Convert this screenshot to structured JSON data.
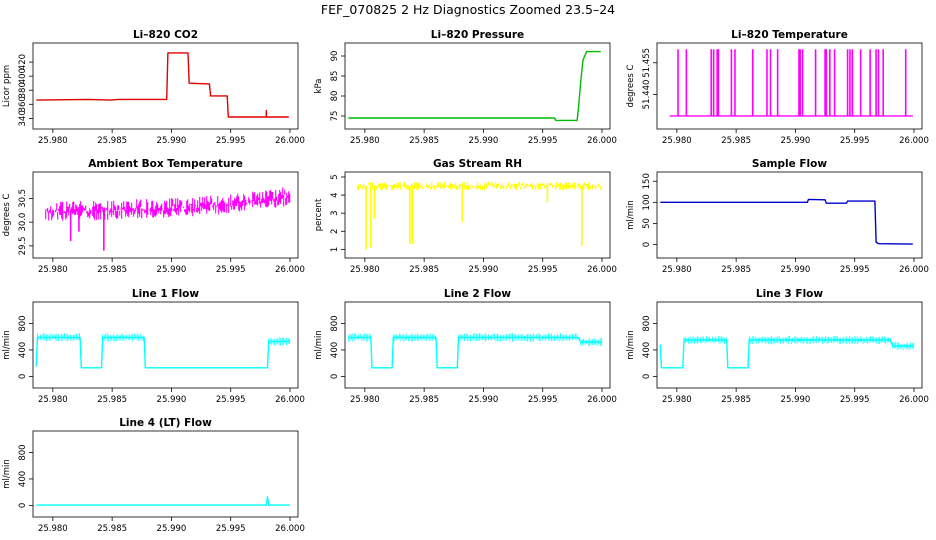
{
  "figure": {
    "title": "FEF_070825  2 Hz Diagnostics Zoomed 23.5–24"
  },
  "colors": {
    "red": "#e00000",
    "green": "#00bb00",
    "magenta": "#ff00ff",
    "yellow": "#ffff00",
    "blue": "#0000cc",
    "cyan": "#00ffff"
  },
  "chart_data": [
    {
      "type": "line",
      "title": "Li–820 CO2",
      "ylabel": "Licor ppm",
      "color": "#e00000",
      "xlim": [
        25.979,
        26.0
      ],
      "ylim": [
        332,
        440
      ],
      "xticks": [
        "25.980",
        "25.985",
        "25.990",
        "25.995",
        "26.000"
      ],
      "yticks": [
        "340",
        "360",
        "380",
        "400",
        "420"
      ],
      "series": [
        {
          "x": [
            25.9786,
            25.983,
            25.9849,
            25.9855,
            25.9896,
            25.9897,
            25.9914,
            25.9915,
            25.9932,
            25.9933,
            25.9947,
            25.9948,
            25.998,
            25.998,
            25.998,
            25.9981,
            25.9999
          ],
          "y": [
            366,
            367,
            366,
            367,
            367,
            433,
            433,
            390,
            389,
            372,
            372,
            342,
            342,
            351,
            343,
            342,
            342
          ]
        }
      ]
    },
    {
      "type": "line",
      "title": "Li–820 Pressure",
      "ylabel": "kPa",
      "color": "#00bb00",
      "xlim": [
        25.979,
        26.0
      ],
      "ylim": [
        73,
        92
      ],
      "xticks": [
        "25.980",
        "25.985",
        "25.990",
        "25.995",
        "26.000"
      ],
      "yticks": [
        "75",
        "80",
        "85",
        "90"
      ],
      "series": [
        {
          "x": [
            25.9786,
            25.996,
            25.9961,
            25.9979,
            25.998,
            25.9982,
            25.9984,
            25.9987,
            25.9999
          ],
          "y": [
            74.5,
            74.5,
            73.9,
            73.9,
            76.5,
            83.5,
            89,
            91.1,
            91.1
          ]
        }
      ]
    },
    {
      "type": "line",
      "title": "Li–820 Temperature",
      "ylabel": "degrees C",
      "color": "#ff00ff",
      "xlim": [
        25.979,
        26.0
      ],
      "ylim": [
        51.426,
        51.462
      ],
      "xticks": [
        "25.980",
        "25.985",
        "25.990",
        "25.995",
        "26.000"
      ],
      "yticks": [
        "51.440",
        "51.455"
      ],
      "baseline": 51.4298,
      "peak": 51.4614,
      "spikes": [
        25.9801,
        25.9808,
        25.9829,
        25.9831,
        25.9834,
        25.9835,
        25.9846,
        25.9849,
        25.9864,
        25.9876,
        25.9879,
        25.9885,
        25.9903,
        25.9904,
        25.9906,
        25.9917,
        25.9925,
        25.9926,
        25.9929,
        25.9933,
        25.9944,
        25.9946,
        25.9948,
        25.9955,
        25.9963,
        25.9968,
        25.997,
        25.9974,
        25.9993
      ]
    },
    {
      "type": "line",
      "title": "Ambient Box Temperature",
      "ylabel": "degrees C",
      "color": "#ff00ff",
      "xlim": [
        25.979,
        26.0
      ],
      "ylim": [
        29.35,
        30.95
      ],
      "xticks": [
        "25.980",
        "25.985",
        "25.990",
        "25.995",
        "26.000"
      ],
      "yticks": [
        "29.5",
        "30.0",
        "30.5"
      ],
      "band": {
        "x": [
          25.9786,
          25.984,
          25.99,
          25.995,
          25.9982,
          26.0
        ],
        "center": [
          30.22,
          30.25,
          30.3,
          30.38,
          30.48,
          30.55
        ],
        "halfwidth": 0.2
      },
      "dips": [
        {
          "x": 25.9815,
          "y": 29.6
        },
        {
          "x": 25.9843,
          "y": 29.4
        },
        {
          "x": 25.9822,
          "y": 29.8
        }
      ]
    },
    {
      "type": "line",
      "title": "Gas Stream RH",
      "ylabel": "percent",
      "color": "#ffff00",
      "xlim": [
        25.979,
        26.0
      ],
      "ylim": [
        0.8,
        5.0
      ],
      "xticks": [
        "25.980",
        "25.985",
        "25.990",
        "25.995",
        "26.000"
      ],
      "yticks": [
        "1",
        "2",
        "3",
        "4",
        "5"
      ],
      "band": {
        "center": 4.5,
        "halfwidth": 0.22
      },
      "dips": [
        {
          "x": 25.9801,
          "y": 1.0
        },
        {
          "x": 25.9805,
          "y": 1.1
        },
        {
          "x": 25.9808,
          "y": 2.7
        },
        {
          "x": 25.9838,
          "y": 1.3
        },
        {
          "x": 25.984,
          "y": 1.3
        },
        {
          "x": 25.9882,
          "y": 2.5
        },
        {
          "x": 25.9954,
          "y": 3.6
        },
        {
          "x": 25.9983,
          "y": 1.2
        }
      ]
    },
    {
      "type": "line",
      "title": "Sample Flow",
      "ylabel": "ml/min",
      "color": "#0000cc",
      "xlim": [
        25.979,
        26.0
      ],
      "ylim": [
        -20,
        160
      ],
      "xticks": [
        "25.980",
        "25.985",
        "25.990",
        "25.995",
        "26.000"
      ],
      "yticks": [
        "0",
        "50",
        "100",
        "150"
      ],
      "series": [
        {
          "x": [
            25.9786,
            25.991,
            25.9911,
            25.9925,
            25.9926,
            25.9943,
            25.9944,
            25.9967,
            25.9968,
            25.997,
            25.9999
          ],
          "y": [
            100,
            100,
            107,
            106,
            98,
            98,
            103,
            103,
            6,
            2,
            1
          ]
        }
      ]
    },
    {
      "type": "line",
      "title": "Line 1 Flow",
      "ylabel": "ml/min",
      "color": "#00ffff",
      "xlim": [
        25.979,
        26.0
      ],
      "ylim": [
        -100,
        1050
      ],
      "xticks": [
        "25.980",
        "25.985",
        "25.990",
        "25.995",
        "26.000"
      ],
      "yticks": [
        "0",
        "400",
        "800"
      ],
      "series": [
        {
          "x": [
            25.9786,
            25.9787,
            25.9787,
            25.9823,
            25.9824,
            25.9841,
            25.9842,
            25.9877,
            25.9878,
            25.9981,
            25.9982,
            26.0
          ],
          "y": [
            150,
            590,
            590,
            590,
            130,
            130,
            590,
            590,
            130,
            130,
            530,
            530
          ]
        }
      ]
    },
    {
      "type": "line",
      "title": "Line 2 Flow",
      "ylabel": "ml/min",
      "color": "#00ffff",
      "xlim": [
        25.979,
        26.0
      ],
      "ylim": [
        -100,
        1050
      ],
      "xticks": [
        "25.980",
        "25.985",
        "25.990",
        "25.995",
        "26.000"
      ],
      "yticks": [
        "0",
        "400",
        "800"
      ],
      "series": [
        {
          "x": [
            25.9786,
            25.9805,
            25.9806,
            25.9823,
            25.9824,
            25.986,
            25.9861,
            25.9878,
            25.9879,
            25.998,
            25.9982,
            26.0
          ],
          "y": [
            590,
            590,
            130,
            130,
            590,
            590,
            130,
            130,
            590,
            590,
            520,
            520
          ]
        }
      ]
    },
    {
      "type": "line",
      "title": "Line 3 Flow",
      "ylabel": "ml/min",
      "color": "#00ffff",
      "xlim": [
        25.979,
        26.0
      ],
      "ylim": [
        -100,
        1050
      ],
      "xticks": [
        "25.980",
        "25.985",
        "25.990",
        "25.995",
        "26.000"
      ],
      "yticks": [
        "0",
        "400",
        "800"
      ],
      "series": [
        {
          "x": [
            25.9786,
            25.9787,
            25.9787,
            25.9805,
            25.9806,
            25.9842,
            25.9843,
            25.986,
            25.9861,
            25.998,
            25.9982,
            26.0
          ],
          "y": [
            480,
            130,
            130,
            130,
            550,
            550,
            130,
            130,
            550,
            550,
            460,
            460
          ]
        }
      ]
    },
    {
      "type": "line",
      "title": "Line 4 (LT) Flow",
      "ylabel": "ml/min",
      "color": "#00ffff",
      "xlim": [
        25.979,
        26.0
      ],
      "ylim": [
        -100,
        1050
      ],
      "xticks": [
        "25.980",
        "25.985",
        "25.990",
        "25.995",
        "26.000"
      ],
      "yticks": [
        "0",
        "400",
        "800"
      ],
      "series": [
        {
          "x": [
            25.9786,
            25.998,
            25.9981,
            25.9982,
            26.0
          ],
          "y": [
            5,
            5,
            130,
            5,
            5
          ]
        }
      ]
    }
  ]
}
